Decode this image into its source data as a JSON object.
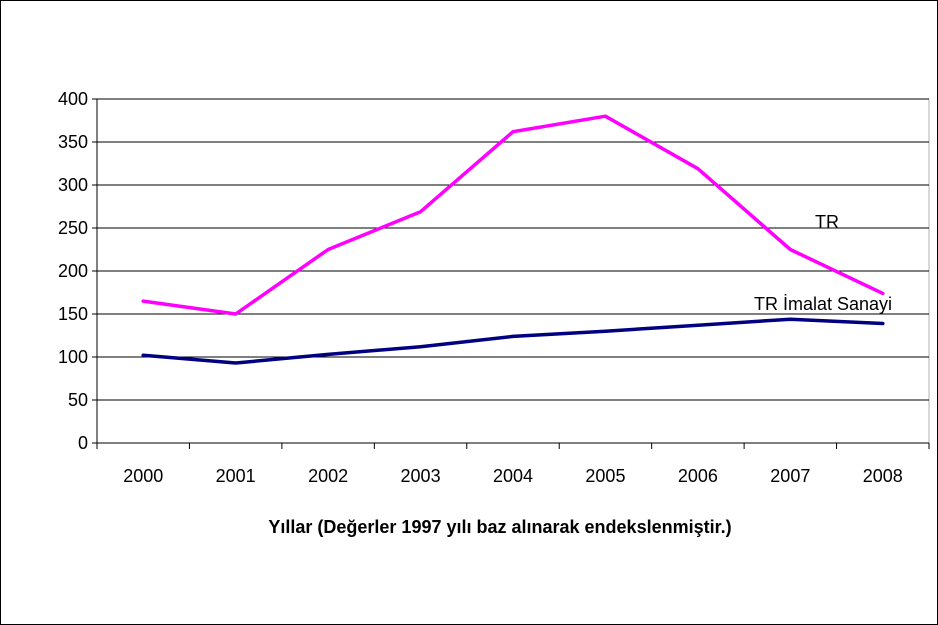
{
  "chart_data": {
    "type": "line",
    "categories": [
      "2000",
      "2001",
      "2002",
      "2003",
      "2004",
      "2005",
      "2006",
      "2007",
      "2008"
    ],
    "series": [
      {
        "name": "TR",
        "values": [
          165,
          150,
          225,
          269,
          362,
          380,
          319,
          225,
          174
        ],
        "color": "#ff00ff"
      },
      {
        "name": "TR İmalat Sanayi",
        "values": [
          102,
          93,
          103,
          112,
          124,
          130,
          137,
          144,
          139
        ],
        "color": "#000080"
      }
    ],
    "xlabel": "Yıllar (Değerler 1997 yılı baz alınarak endekslenmiştir.)",
    "ylabel": "",
    "ylim": [
      0,
      400
    ],
    "yticks": [
      "0",
      "50",
      "100",
      "150",
      "200",
      "250",
      "300",
      "350",
      "400"
    ],
    "grid": true,
    "legend": "inline-labels"
  }
}
